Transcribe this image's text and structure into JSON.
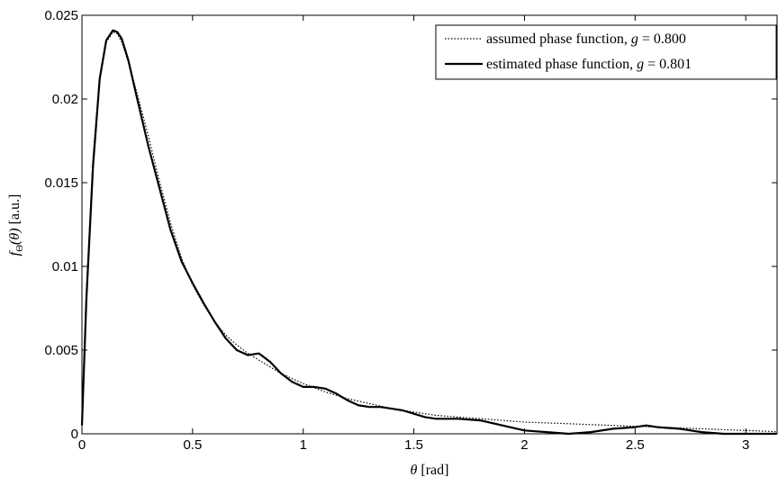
{
  "chart_data": {
    "type": "line",
    "xlabel": {
      "symbol": "θ",
      "unit": "[rad]"
    },
    "ylabel": {
      "symbol": "f",
      "subscript": "Θ",
      "arg": "(θ)",
      "unit": "[a.u.]"
    },
    "xlim": [
      0,
      3.14159
    ],
    "ylim": [
      0,
      0.025
    ],
    "x_ticks": [
      0,
      0.5,
      1,
      1.5,
      2,
      2.5,
      3
    ],
    "x_tick_labels": [
      "0",
      "0.5",
      "1",
      "1.5",
      "2",
      "2.5",
      "3"
    ],
    "y_ticks": [
      0,
      0.005,
      0.01,
      0.015,
      0.02,
      0.025
    ],
    "y_tick_labels": [
      "0",
      "0.005",
      "0.01",
      "0.015",
      "0.02",
      "0.025"
    ],
    "grid": false,
    "legend_position": "top-right",
    "series": [
      {
        "name": "assumed phase function, g = 0.800",
        "legend": {
          "text": "assumed phase function, ",
          "var": "g",
          "rest": " = 0.800"
        },
        "style": "dotted",
        "color": "#000000",
        "x": [
          0,
          0.02,
          0.05,
          0.08,
          0.11,
          0.14,
          0.16,
          0.18,
          0.21,
          0.25,
          0.3,
          0.35,
          0.4,
          0.45,
          0.5,
          0.55,
          0.6,
          0.65,
          0.7,
          0.75,
          0.8,
          0.85,
          0.9,
          0.95,
          1.0,
          1.1,
          1.2,
          1.3,
          1.4,
          1.5,
          1.6,
          1.7,
          1.8,
          1.9,
          2.0,
          2.1,
          2.2,
          2.3,
          2.4,
          2.5,
          2.6,
          2.7,
          2.8,
          2.9,
          3.0,
          3.1,
          3.14
        ],
        "y": [
          0.0005,
          0.0085,
          0.0165,
          0.0213,
          0.0234,
          0.024,
          0.0239,
          0.0234,
          0.0222,
          0.0203,
          0.0178,
          0.0151,
          0.0126,
          0.0105,
          0.0089,
          0.0077,
          0.0067,
          0.0059,
          0.0053,
          0.0048,
          0.0044,
          0.004,
          0.0036,
          0.0033,
          0.003,
          0.0025,
          0.0021,
          0.0018,
          0.0015,
          0.0013,
          0.0011,
          0.001,
          0.0009,
          0.0008,
          0.0007,
          0.00065,
          0.0006,
          0.00055,
          0.0005,
          0.00045,
          0.0004,
          0.00035,
          0.0003,
          0.00025,
          0.0002,
          0.00015,
          0.00012
        ]
      },
      {
        "name": "estimated phase function, g = 0.801",
        "legend": {
          "text": "estimated phase function, ",
          "var": "g",
          "rest": " = 0.801"
        },
        "style": "solid",
        "color": "#000000",
        "x": [
          0,
          0.02,
          0.05,
          0.08,
          0.11,
          0.14,
          0.16,
          0.18,
          0.21,
          0.25,
          0.3,
          0.35,
          0.4,
          0.45,
          0.5,
          0.55,
          0.6,
          0.65,
          0.7,
          0.75,
          0.8,
          0.85,
          0.9,
          0.95,
          1.0,
          1.05,
          1.1,
          1.15,
          1.2,
          1.25,
          1.3,
          1.35,
          1.4,
          1.45,
          1.5,
          1.55,
          1.6,
          1.7,
          1.8,
          1.9,
          2.0,
          2.1,
          2.2,
          2.3,
          2.4,
          2.5,
          2.55,
          2.6,
          2.7,
          2.8,
          2.9,
          3.0,
          3.1,
          3.14
        ],
        "y": [
          0.0005,
          0.008,
          0.016,
          0.0212,
          0.0235,
          0.0241,
          0.024,
          0.0236,
          0.0223,
          0.02,
          0.0172,
          0.0147,
          0.0122,
          0.0103,
          0.009,
          0.0078,
          0.0067,
          0.0057,
          0.005,
          0.0047,
          0.0048,
          0.0043,
          0.0036,
          0.0031,
          0.0028,
          0.0028,
          0.0027,
          0.0024,
          0.002,
          0.0017,
          0.0016,
          0.0016,
          0.0015,
          0.0014,
          0.0012,
          0.001,
          0.0009,
          0.0009,
          0.0008,
          0.0005,
          0.0002,
          0.0001,
          0.0,
          0.0001,
          0.0003,
          0.0004,
          0.0005,
          0.0004,
          0.0003,
          0.0001,
          0.0,
          0.0,
          0.0,
          0.0
        ]
      }
    ]
  }
}
